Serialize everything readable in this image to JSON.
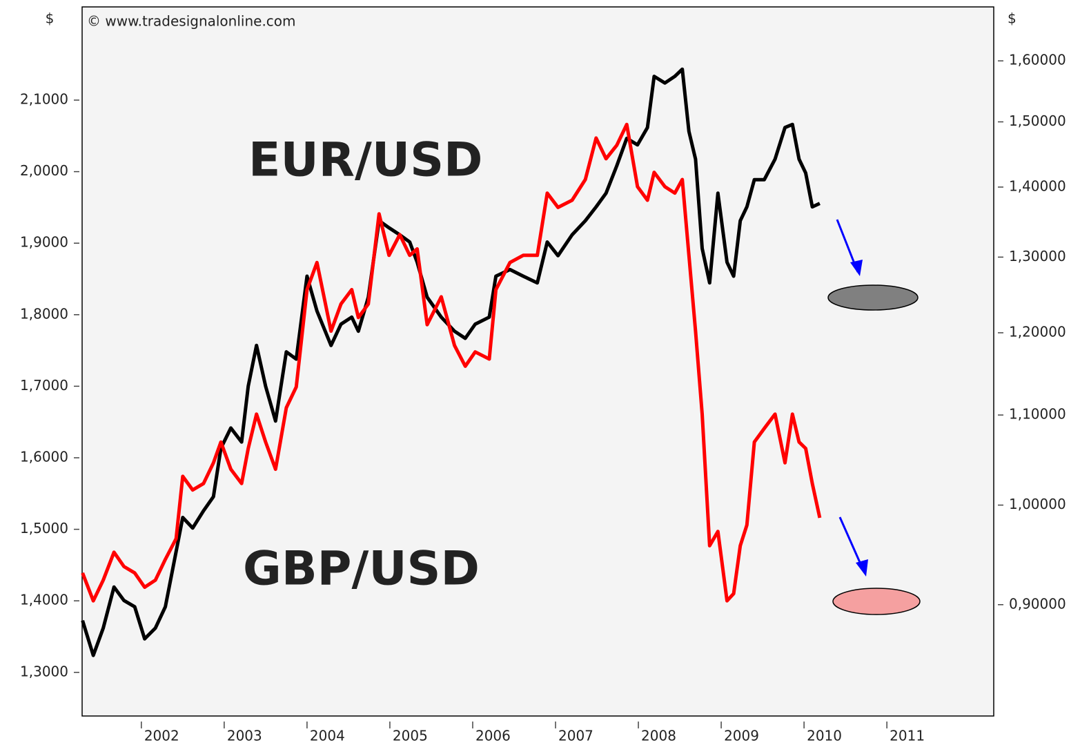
{
  "chart_data": {
    "type": "line",
    "annotations": [
      "© www.tradesignalonline.com"
    ],
    "ylabel": "$",
    "y2label": "$",
    "x": [
      2001.29,
      2001.42,
      2001.54,
      2001.67,
      2001.79,
      2001.92,
      2002.04,
      2002.17,
      2002.29,
      2002.42,
      2002.5,
      2002.62,
      2002.75,
      2002.87,
      2002.96,
      2003.08,
      2003.21,
      2003.29,
      2003.39,
      2003.5,
      2003.62,
      2003.75,
      2003.87,
      2004.0,
      2004.12,
      2004.29,
      2004.41,
      2004.54,
      2004.62,
      2004.74,
      2004.87,
      2004.99,
      2005.12,
      2005.24,
      2005.33,
      2005.45,
      2005.62,
      2005.78,
      2005.91,
      2006.03,
      2006.2,
      2006.28,
      2006.45,
      2006.61,
      2006.78,
      2006.9,
      2007.03,
      2007.2,
      2007.36,
      2007.49,
      2007.61,
      2007.74,
      2007.86,
      2007.99,
      2008.11,
      2008.19,
      2008.32,
      2008.44,
      2008.53,
      2008.61,
      2008.69,
      2008.77,
      2008.86,
      2008.96,
      2009.07,
      2009.15,
      2009.23,
      2009.31,
      2009.4,
      2009.52,
      2009.65,
      2009.77,
      2009.86,
      2009.94,
      2010.02,
      2010.1,
      2010.19
    ],
    "series": [
      {
        "name": "EUR/USD",
        "color": "#000000",
        "axis": "y2",
        "values": [
          0.885,
          0.853,
          0.878,
          0.917,
          0.904,
          0.898,
          0.868,
          0.878,
          0.898,
          0.952,
          0.987,
          0.976,
          0.994,
          1.009,
          1.062,
          1.085,
          1.069,
          1.134,
          1.184,
          1.134,
          1.093,
          1.176,
          1.167,
          1.274,
          1.228,
          1.184,
          1.211,
          1.22,
          1.202,
          1.246,
          1.351,
          1.341,
          1.331,
          1.321,
          1.293,
          1.246,
          1.22,
          1.202,
          1.193,
          1.211,
          1.22,
          1.274,
          1.283,
          1.274,
          1.265,
          1.321,
          1.302,
          1.331,
          1.351,
          1.371,
          1.391,
          1.432,
          1.474,
          1.464,
          1.491,
          1.574,
          1.563,
          1.574,
          1.586,
          1.485,
          1.442,
          1.312,
          1.265,
          1.391,
          1.293,
          1.274,
          1.351,
          1.371,
          1.411,
          1.411,
          1.442,
          1.491,
          1.496,
          1.442,
          1.421,
          1.371,
          1.376
        ]
      },
      {
        "name": "GBP/USD",
        "color": "#ff0000",
        "values": [
          1.439,
          1.4,
          1.429,
          1.468,
          1.448,
          1.439,
          1.419,
          1.429,
          1.458,
          1.487,
          1.574,
          1.555,
          1.564,
          1.593,
          1.622,
          1.584,
          1.564,
          1.613,
          1.661,
          1.622,
          1.584,
          1.67,
          1.699,
          1.835,
          1.873,
          1.777,
          1.815,
          1.835,
          1.796,
          1.815,
          1.941,
          1.883,
          1.912,
          1.883,
          1.892,
          1.786,
          1.825,
          1.757,
          1.728,
          1.748,
          1.738,
          1.835,
          1.873,
          1.883,
          1.883,
          1.97,
          1.95,
          1.96,
          1.989,
          2.047,
          2.018,
          2.037,
          2.066,
          1.979,
          1.96,
          1.999,
          1.979,
          1.97,
          1.989,
          1.883,
          1.777,
          1.661,
          1.477,
          1.497,
          1.4,
          1.41,
          1.477,
          1.506,
          1.622,
          1.641,
          1.661,
          1.593,
          1.661,
          1.622,
          1.613,
          1.564,
          1.516
        ]
      }
    ],
    "xlim": [
      2001.285,
      2012.29
    ],
    "xticks": [
      2002,
      2003,
      2004,
      2005,
      2006,
      2007,
      2008,
      2009,
      2010,
      2011
    ],
    "ylim": [
      1.239,
      2.2303
    ],
    "yticks": [
      {
        "value": 1.3,
        "label": "1,3000"
      },
      {
        "value": 1.4,
        "label": "1,4000"
      },
      {
        "value": 1.5,
        "label": "1,5000"
      },
      {
        "value": 1.6,
        "label": "1,6000"
      },
      {
        "value": 1.7,
        "label": "1,7000"
      },
      {
        "value": 1.8,
        "label": "1,8000"
      },
      {
        "value": 1.9,
        "label": "1,9000"
      },
      {
        "value": 2.0,
        "label": "2,0000"
      },
      {
        "value": 2.1,
        "label": "2,1000"
      }
    ],
    "y2lim": [
      0.8,
      1.694
    ],
    "y2log": true,
    "y2ticks": [
      {
        "value": 0.9,
        "label": "0,90000"
      },
      {
        "value": 1.0,
        "label": "1,00000"
      },
      {
        "value": 1.1,
        "label": "1,10000"
      },
      {
        "value": 1.2,
        "label": "1,20000"
      },
      {
        "value": 1.3,
        "label": "1,30000"
      },
      {
        "value": 1.4,
        "label": "1,40000"
      },
      {
        "value": 1.5,
        "label": "1,50000"
      },
      {
        "value": 1.6,
        "label": "1,60000"
      }
    ],
    "grid": false
  }
}
